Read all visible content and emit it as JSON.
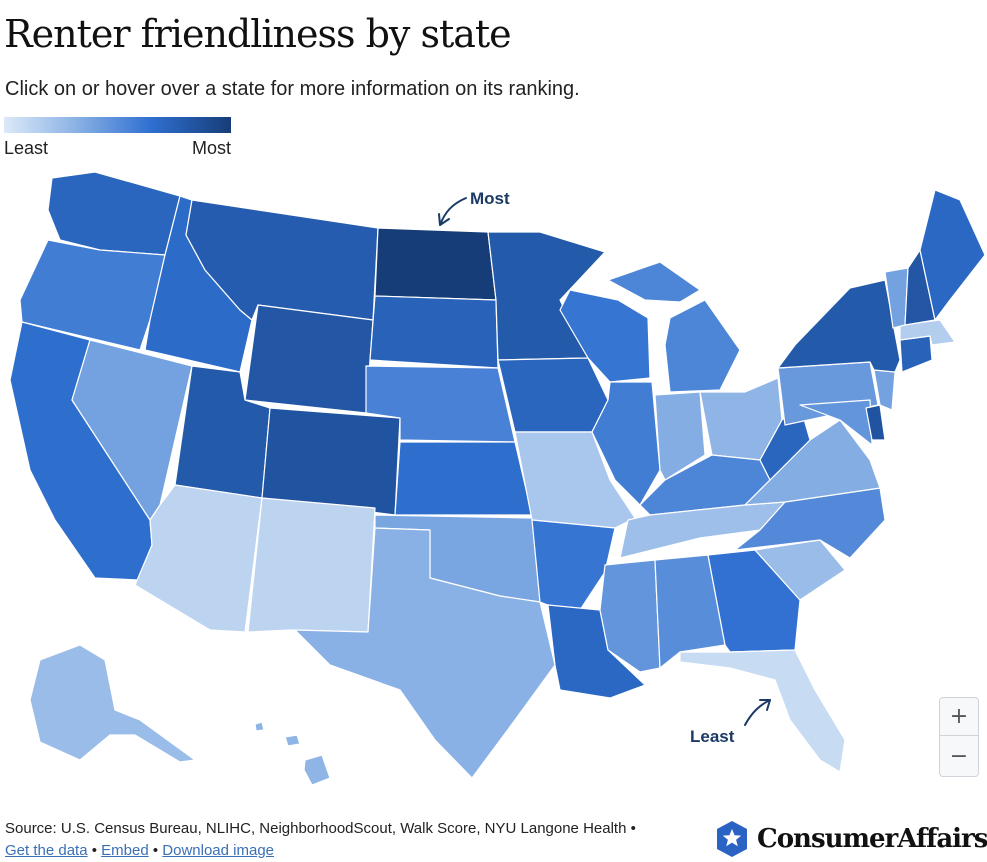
{
  "header": {
    "title": "Renter friendliness by state",
    "subtitle": "Click on or hover over a state for more information on its ranking."
  },
  "legend": {
    "low_label": "Least",
    "high_label": "Most"
  },
  "callouts": {
    "most": "Most",
    "least": "Least"
  },
  "zoom": {
    "in_label": "+",
    "out_label": "−"
  },
  "footer": {
    "source": "Source: U.S. Census Bureau, NLIHC, NeighborhoodScout, Walk Score, NYU Langone Health •",
    "get_data": "Get the data",
    "embed": "Embed",
    "download": "Download image",
    "sep": " • "
  },
  "logo": {
    "text": "ConsumerAffairs",
    "icon": "star-shield-icon"
  },
  "colors": {
    "least": "#dce9f8",
    "most": "#163d77"
  },
  "states": [
    {
      "abbr": "WA",
      "level": 0.72
    },
    {
      "abbr": "OR",
      "level": 0.58
    },
    {
      "abbr": "CA",
      "level": 0.66
    },
    {
      "abbr": "ID",
      "level": 0.68
    },
    {
      "abbr": "NV",
      "level": 0.4
    },
    {
      "abbr": "MT",
      "level": 0.78
    },
    {
      "abbr": "WY",
      "level": 0.82
    },
    {
      "abbr": "UT",
      "level": 0.8
    },
    {
      "abbr": "AZ",
      "level": 0.12
    },
    {
      "abbr": "CO",
      "level": 0.84
    },
    {
      "abbr": "NM",
      "level": 0.12
    },
    {
      "abbr": "ND",
      "level": 1.0
    },
    {
      "abbr": "SD",
      "level": 0.74
    },
    {
      "abbr": "NE",
      "level": 0.56
    },
    {
      "abbr": "KS",
      "level": 0.66
    },
    {
      "abbr": "OK",
      "level": 0.38
    },
    {
      "abbr": "TX",
      "level": 0.32
    },
    {
      "abbr": "MN",
      "level": 0.8
    },
    {
      "abbr": "IA",
      "level": 0.72
    },
    {
      "abbr": "MO",
      "level": 0.2
    },
    {
      "abbr": "AR",
      "level": 0.62
    },
    {
      "abbr": "LA",
      "level": 0.7
    },
    {
      "abbr": "WI",
      "level": 0.62
    },
    {
      "abbr": "IL",
      "level": 0.58
    },
    {
      "abbr": "MI",
      "level": 0.54
    },
    {
      "abbr": "IN",
      "level": 0.34
    },
    {
      "abbr": "OH",
      "level": 0.3
    },
    {
      "abbr": "KY",
      "level": 0.54
    },
    {
      "abbr": "TN",
      "level": 0.24
    },
    {
      "abbr": "MS",
      "level": 0.46
    },
    {
      "abbr": "AL",
      "level": 0.5
    },
    {
      "abbr": "GA",
      "level": 0.64
    },
    {
      "abbr": "FL",
      "level": 0.08
    },
    {
      "abbr": "SC",
      "level": 0.26
    },
    {
      "abbr": "NC",
      "level": 0.52
    },
    {
      "abbr": "VA",
      "level": 0.34
    },
    {
      "abbr": "WV",
      "level": 0.72
    },
    {
      "abbr": "PA",
      "level": 0.44
    },
    {
      "abbr": "NY",
      "level": 0.8
    },
    {
      "abbr": "VT",
      "level": 0.4
    },
    {
      "abbr": "NH",
      "level": 0.82
    },
    {
      "abbr": "ME",
      "level": 0.7
    },
    {
      "abbr": "MA",
      "level": 0.16
    },
    {
      "abbr": "CT",
      "level": 0.74
    },
    {
      "abbr": "NJ",
      "level": 0.4
    },
    {
      "abbr": "DE",
      "level": 0.84
    },
    {
      "abbr": "MD",
      "level": 0.46
    },
    {
      "abbr": "AK",
      "level": 0.26
    },
    {
      "abbr": "HI",
      "level": 0.3
    }
  ]
}
